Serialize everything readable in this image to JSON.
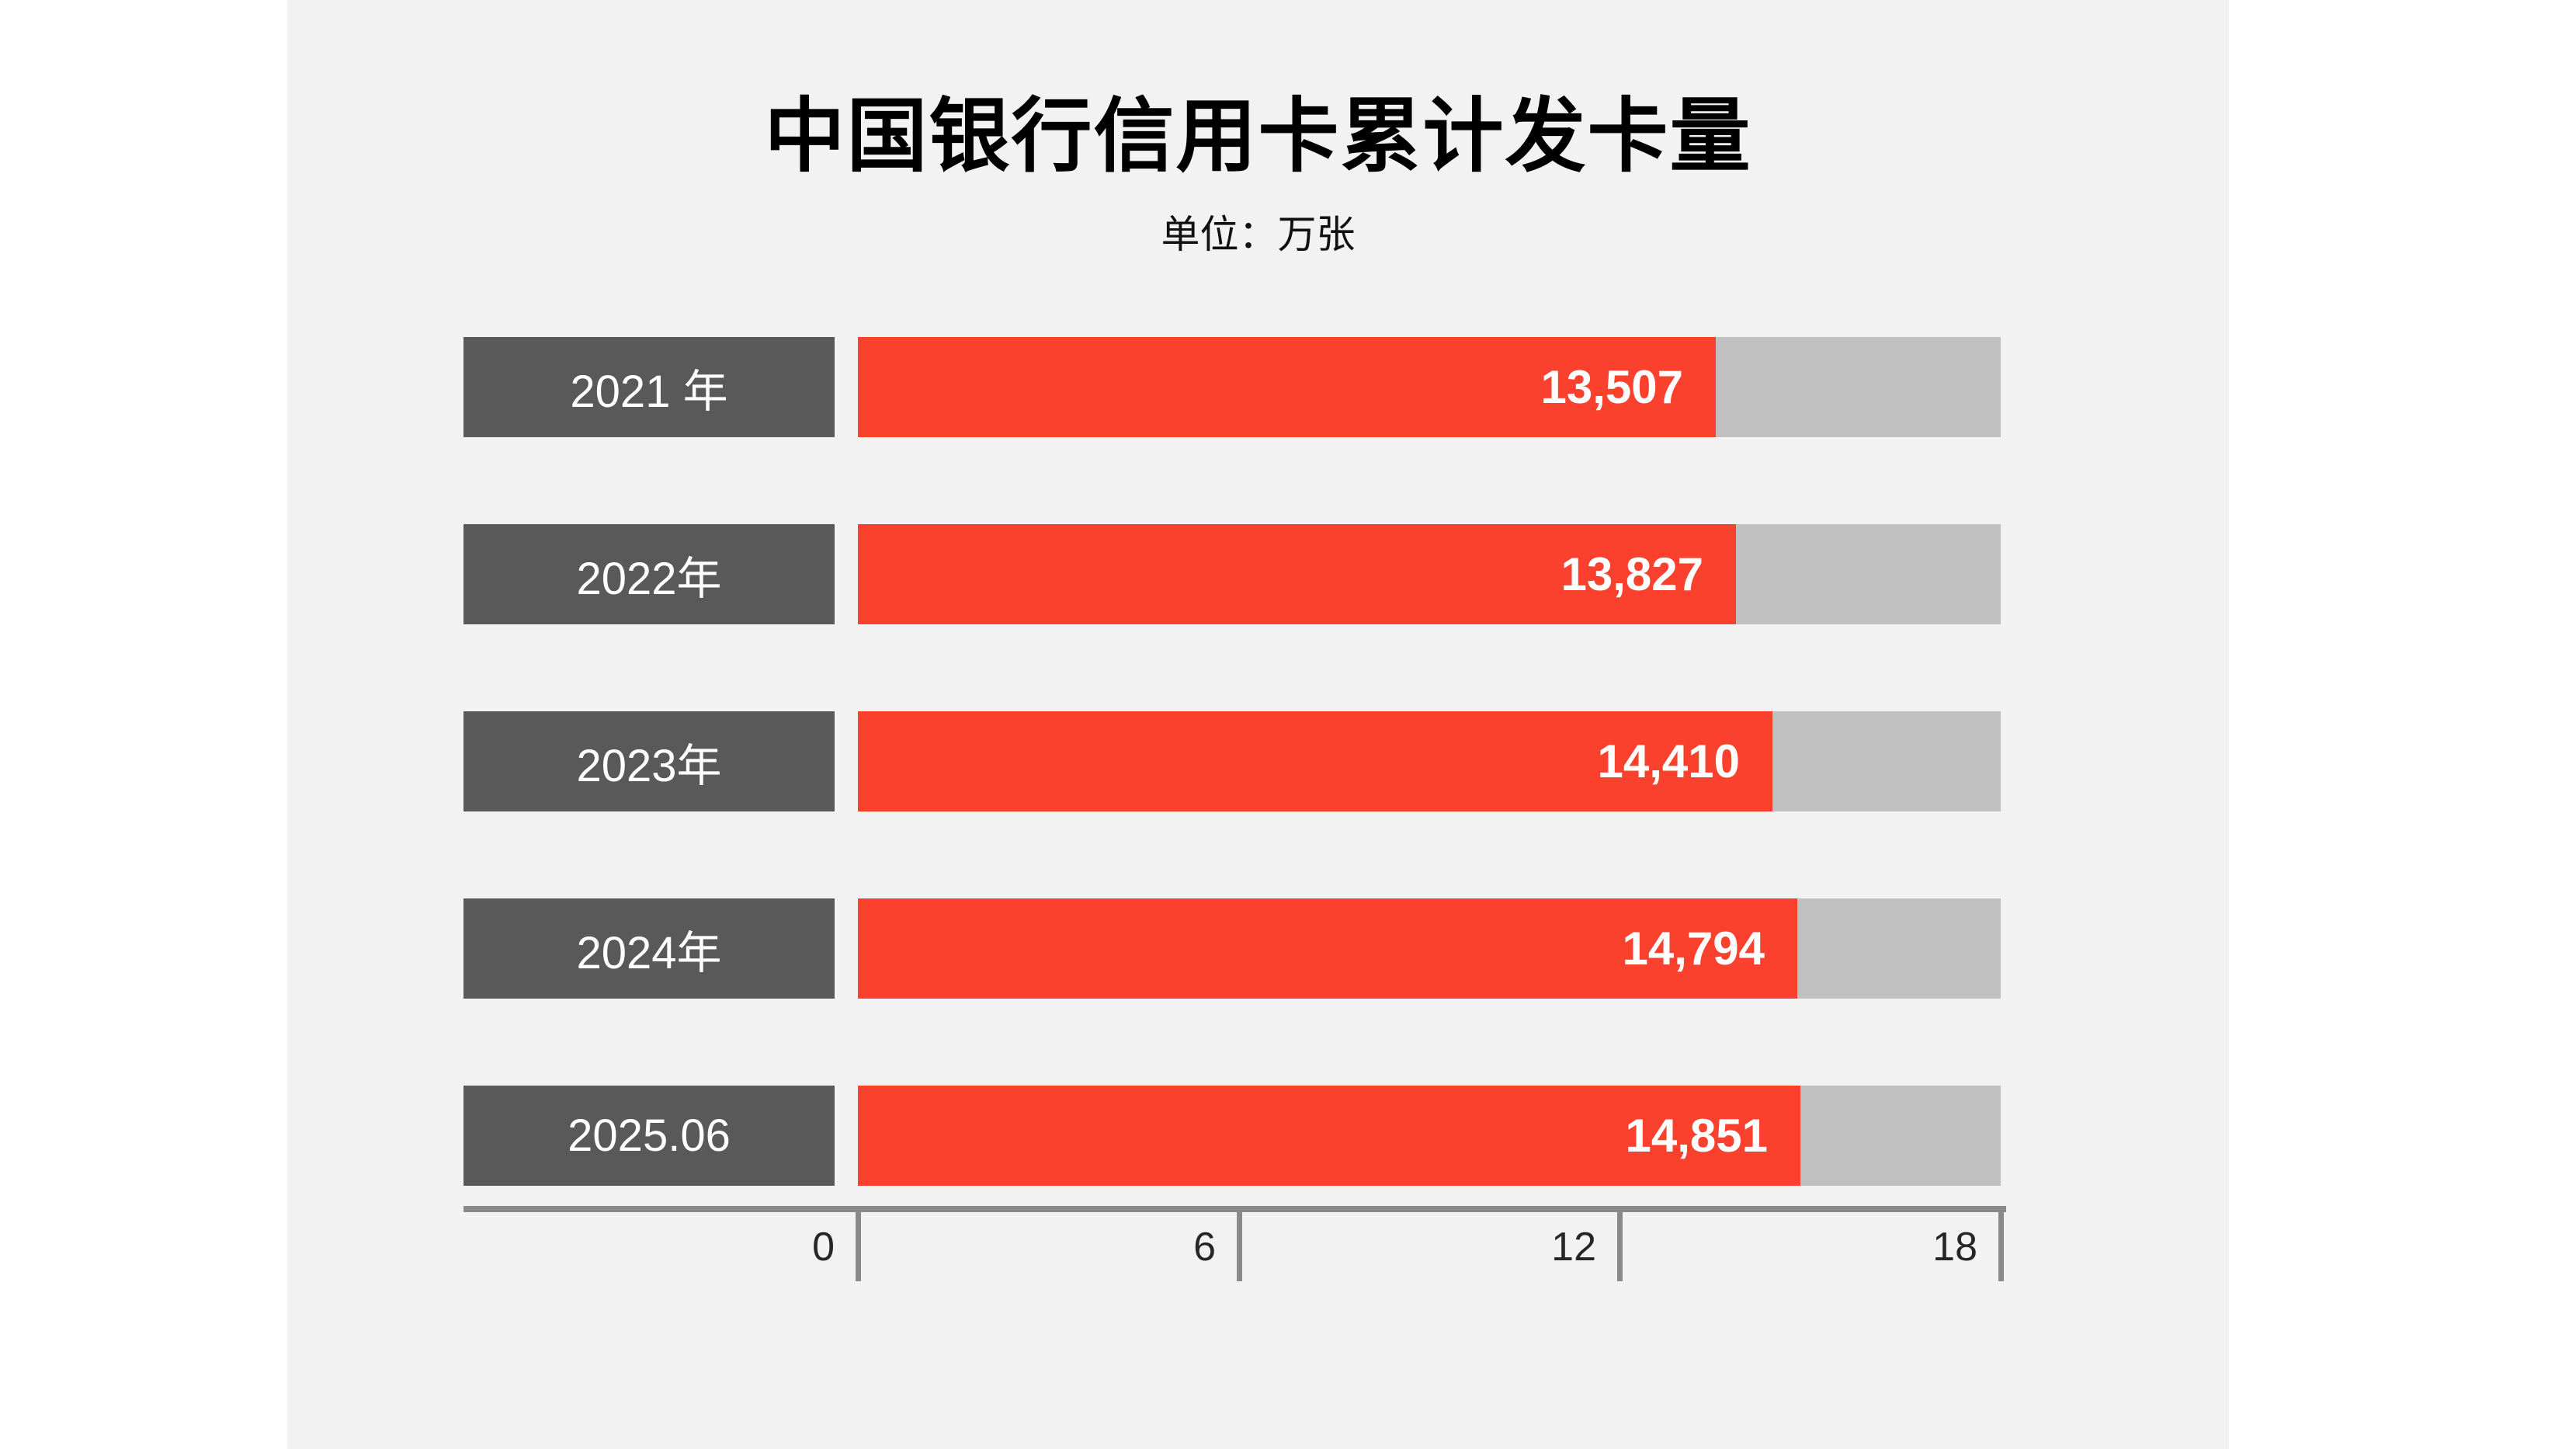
{
  "header": {
    "title": "中国银行信用卡累计发卡量",
    "subtitle": "单位：万张"
  },
  "chart_data": {
    "type": "bar",
    "orientation": "horizontal",
    "title": "中国银行信用卡累计发卡量",
    "unit_label": "单位：万张",
    "ylabel": "",
    "xlabel": "",
    "categories": [
      "2021 年",
      "2022年",
      "2023年",
      "2024年",
      "2025.06"
    ],
    "values": [
      13507,
      13827,
      14410,
      14794,
      14851
    ],
    "value_labels": [
      "13,507",
      "13,827",
      "14,410",
      "14,794",
      "14,851"
    ],
    "xlim": [
      0,
      18000
    ],
    "x_ticks": [
      0,
      6000,
      12000,
      18000
    ],
    "x_tick_labels": [
      "0",
      "6",
      "12",
      "18"
    ],
    "grid": false,
    "legend": "none",
    "colors": {
      "bar_fill": "#f9412e",
      "bar_track": "#c0c0c0",
      "category_box": "#595959",
      "category_text": "#ffffff",
      "value_text": "#ffffff",
      "axis_line": "#8a8a8a",
      "axis_text": "#262626",
      "panel_background": "#f1f2f1",
      "page_background": "#ffffff"
    }
  }
}
